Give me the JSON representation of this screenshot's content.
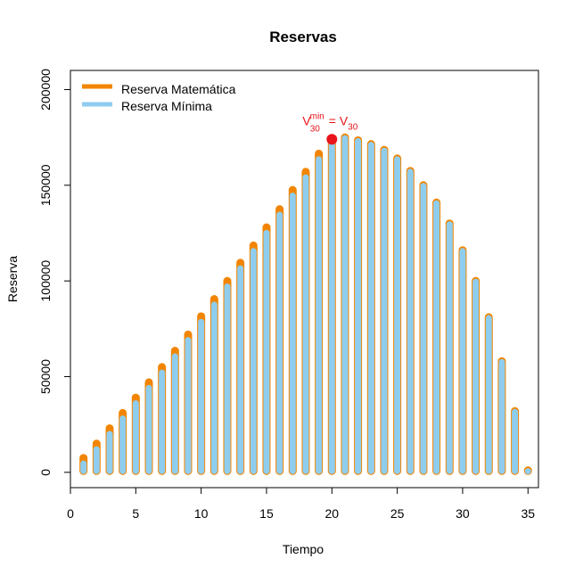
{
  "chart_data": {
    "type": "bar",
    "title": "Reservas",
    "xlabel": "Tiempo",
    "ylabel": "Reserva",
    "xlim": [
      0,
      35.8
    ],
    "ylim": [
      -8000,
      210000
    ],
    "x_ticks": [
      "0",
      "5",
      "10",
      "15",
      "20",
      "25",
      "30",
      "35"
    ],
    "y_ticks": [
      "0",
      "50000",
      "100000",
      "150000",
      "200000"
    ],
    "legend": {
      "position": "top-left",
      "entries": [
        "Reserva Matemática",
        "Reserva Mínima"
      ]
    },
    "x": [
      1,
      2,
      3,
      4,
      5,
      6,
      7,
      8,
      9,
      10,
      11,
      12,
      13,
      14,
      15,
      16,
      17,
      18,
      19,
      20,
      21,
      22,
      23,
      24,
      25,
      26,
      27,
      28,
      29,
      30,
      31,
      32,
      33,
      34,
      35
    ],
    "series": [
      {
        "name": "Reserva Matemática",
        "color": "#f28500",
        "values": [
          7500,
          15000,
          23000,
          31000,
          39000,
          47000,
          55000,
          63500,
          72000,
          81500,
          90500,
          100000,
          109500,
          118500,
          128000,
          137500,
          147500,
          157000,
          166500,
          174000,
          175000,
          173500,
          171500,
          168500,
          164000,
          157500,
          150000,
          141000,
          130000,
          116000,
          100000,
          81000,
          58000,
          32000,
          1000
        ]
      },
      {
        "name": "Reserva Mínima",
        "color": "#8fcdef",
        "values": [
          5000,
          12500,
          20500,
          28500,
          36500,
          44500,
          52500,
          61000,
          69500,
          79000,
          88000,
          97500,
          107000,
          116000,
          125500,
          135000,
          145000,
          154500,
          164000,
          174000,
          175000,
          173500,
          171500,
          168500,
          164000,
          157500,
          150000,
          141000,
          130000,
          116000,
          100000,
          81000,
          58000,
          32000,
          1000
        ]
      }
    ],
    "annotation": {
      "x": 20,
      "y": 174000,
      "color": "#e8141a",
      "label_main_1": "V",
      "label_sup": "min",
      "label_sub_1": "30",
      "label_eq": " = V",
      "label_sub_2": "30"
    }
  }
}
